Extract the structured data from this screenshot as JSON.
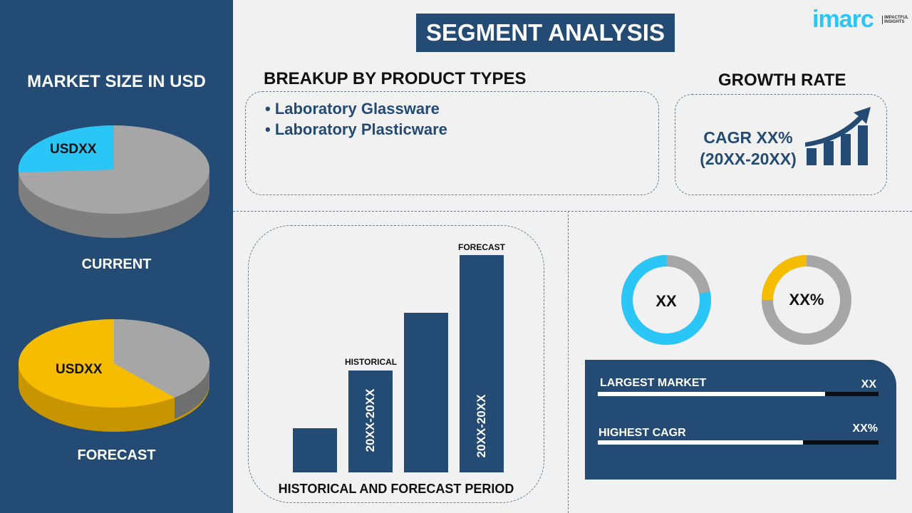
{
  "title": "SEGMENT ANALYSIS",
  "logo": {
    "brand": "imarc",
    "tagline": "IMPACTFUL INSIGHTS"
  },
  "colors": {
    "navy": "#234b73",
    "cyan": "#29c6f7",
    "yellow": "#f6bc00",
    "grey": "#a6a6a6",
    "background": "#f1f1f1"
  },
  "market_size": {
    "heading": "MARKET SIZE IN USD",
    "current": {
      "value": "USDXX",
      "label": "CURRENT",
      "share": 0.25
    },
    "forecast": {
      "value": "USDXX",
      "label": "FORECAST",
      "share": 0.62
    }
  },
  "breakup": {
    "heading": "BREAKUP BY PRODUCT TYPES",
    "items": [
      "• Laboratory Glassware",
      "• Laboratory Plasticware"
    ]
  },
  "growth": {
    "heading": "GROWTH RATE",
    "cagr": "CAGR XX%",
    "period": "(20XX-20XX)",
    "icon": "growth-chart-arrow-icon"
  },
  "period_chart": {
    "title": "HISTORICAL AND FORECAST PERIOD",
    "historical_label": "HISTORICAL",
    "forecast_label": "FORECAST",
    "historical_period": "20XX-20XX",
    "forecast_period": "20XX-20XX",
    "relative_bar_values": [
      1,
      2.3,
      3.6,
      4.9
    ]
  },
  "donuts": [
    {
      "label": "XX",
      "fill": 0.78
    },
    {
      "label": "XX%",
      "fill": 0.25
    }
  ],
  "stats": [
    {
      "label": "LARGEST MARKET",
      "value": "XX",
      "fill": 0.81
    },
    {
      "label": "HIGHEST CAGR",
      "value": "XX%",
      "fill": 0.73
    }
  ]
}
